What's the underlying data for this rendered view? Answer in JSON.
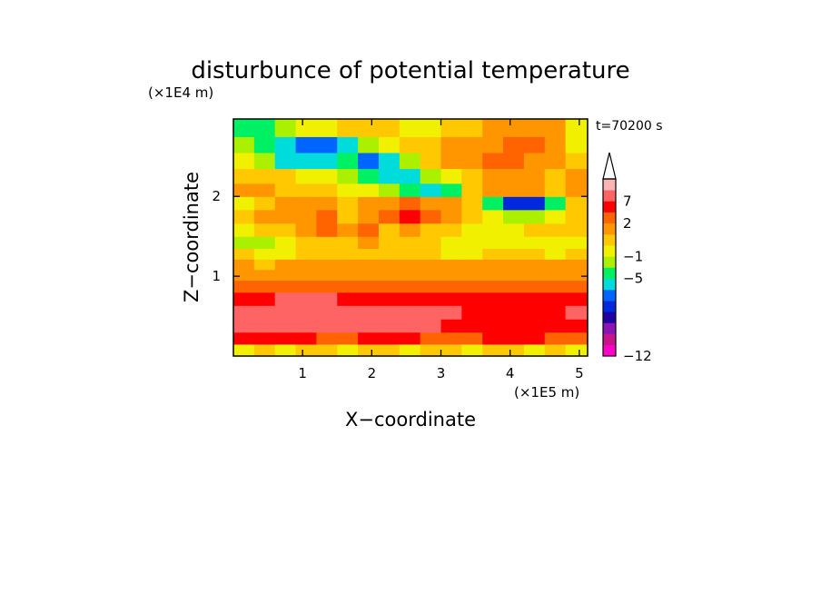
{
  "chart_data": {
    "type": "heatmap",
    "title": "disturbunce of potential temperature",
    "xlabel": "X−coordinate",
    "ylabel": "Z−coordinate",
    "x_unit": "(×1E5 m)",
    "y_unit": "(×1E4 m)",
    "time_label": "t=70200 s",
    "xlim": [
      0,
      5.12
    ],
    "ylim": [
      0,
      2.97
    ],
    "x_ticks": [
      "1",
      "2",
      "3",
      "4",
      "5"
    ],
    "y_ticks": [
      "1",
      "2"
    ],
    "colorbar": {
      "colors": [
        "#ff00c8",
        "#c8148c",
        "#8c14b4",
        "#2000a0",
        "#0028dc",
        "#0064ff",
        "#00dcdc",
        "#00f064",
        "#aaf000",
        "#f0f000",
        "#ffc800",
        "#ff9600",
        "#ff6400",
        "#ff0000",
        "#ff6464",
        "#ffb4b4"
      ],
      "tick_labels": [
        "−12",
        "−5",
        "−1",
        "2",
        "7"
      ],
      "extend": "max"
    },
    "z_values": {
      "x": [
        0.15,
        0.45,
        0.75,
        1.05,
        1.35,
        1.65,
        1.95,
        2.25,
        2.55,
        2.85,
        3.15,
        3.45,
        3.75,
        4.05,
        4.35,
        4.65,
        4.95
      ],
      "y": [
        0.08,
        0.22,
        0.38,
        0.55,
        0.72,
        0.88,
        1.02,
        1.15,
        1.28,
        1.42,
        1.58,
        1.75,
        1.92,
        2.08,
        2.25,
        2.45,
        2.65,
        2.85
      ],
      "values": [
        [
          0,
          1,
          0,
          1,
          1,
          0,
          1,
          1,
          0,
          1,
          1,
          0,
          1,
          1,
          0,
          1,
          0
        ],
        [
          4,
          4,
          4,
          4,
          3,
          3,
          4,
          4,
          4,
          3,
          3,
          3,
          4,
          4,
          4,
          3,
          3
        ],
        [
          5,
          5,
          5,
          5,
          5,
          5,
          5,
          5,
          5,
          5,
          4,
          4,
          4,
          4,
          4,
          4,
          4
        ],
        [
          5,
          5,
          5,
          5,
          5,
          5,
          5,
          5,
          5,
          5,
          5,
          4,
          4,
          4,
          4,
          4,
          5
        ],
        [
          4,
          4,
          5,
          5,
          5,
          4,
          4,
          4,
          4,
          4,
          4,
          4,
          4,
          4,
          4,
          4,
          4
        ],
        [
          3,
          3,
          3,
          3,
          3,
          3,
          3,
          3,
          3,
          3,
          3,
          3,
          3,
          3,
          3,
          3,
          3
        ],
        [
          2,
          2,
          2,
          2,
          2,
          2,
          2,
          2,
          2,
          2,
          2,
          2,
          2,
          2,
          2,
          2,
          2
        ],
        [
          2,
          1,
          2,
          2,
          2,
          2,
          2,
          2,
          2,
          2,
          2,
          2,
          2,
          2,
          2,
          2,
          2
        ],
        [
          1,
          0,
          0,
          1,
          1,
          1,
          1,
          1,
          1,
          1,
          0,
          0,
          1,
          1,
          1,
          0,
          1
        ],
        [
          -1,
          -1,
          0,
          1,
          1,
          1,
          2,
          1,
          1,
          1,
          0,
          0,
          0,
          0,
          0,
          0,
          0
        ],
        [
          0,
          1,
          1,
          2,
          3,
          2,
          3,
          1,
          2,
          1,
          1,
          0,
          0,
          0,
          1,
          1,
          1
        ],
        [
          1,
          2,
          2,
          2,
          3,
          1,
          2,
          3,
          4,
          3,
          2,
          1,
          0,
          -1,
          -1,
          0,
          1
        ],
        [
          0,
          1,
          2,
          2,
          2,
          1,
          2,
          2,
          3,
          2,
          2,
          1,
          -2,
          -5,
          -5,
          -2,
          1
        ],
        [
          2,
          2,
          1,
          1,
          1,
          0,
          0,
          -1,
          -2,
          -3,
          -2,
          1,
          2,
          2,
          2,
          1,
          2
        ],
        [
          1,
          1,
          1,
          0,
          0,
          -1,
          -2,
          -3,
          -3,
          -1,
          0,
          1,
          2,
          2,
          2,
          1,
          2
        ],
        [
          0,
          -1,
          -3,
          -3,
          -3,
          -2,
          -4,
          -3,
          -1,
          1,
          2,
          2,
          3,
          3,
          2,
          2,
          1
        ],
        [
          -1,
          -2,
          -3,
          -4,
          -4,
          -3,
          -1,
          0,
          1,
          1,
          2,
          2,
          2,
          3,
          3,
          2,
          0
        ],
        [
          -2,
          -2,
          -1,
          0,
          0,
          1,
          1,
          1,
          0,
          0,
          1,
          1,
          2,
          2,
          2,
          2,
          0
        ]
      ]
    }
  }
}
